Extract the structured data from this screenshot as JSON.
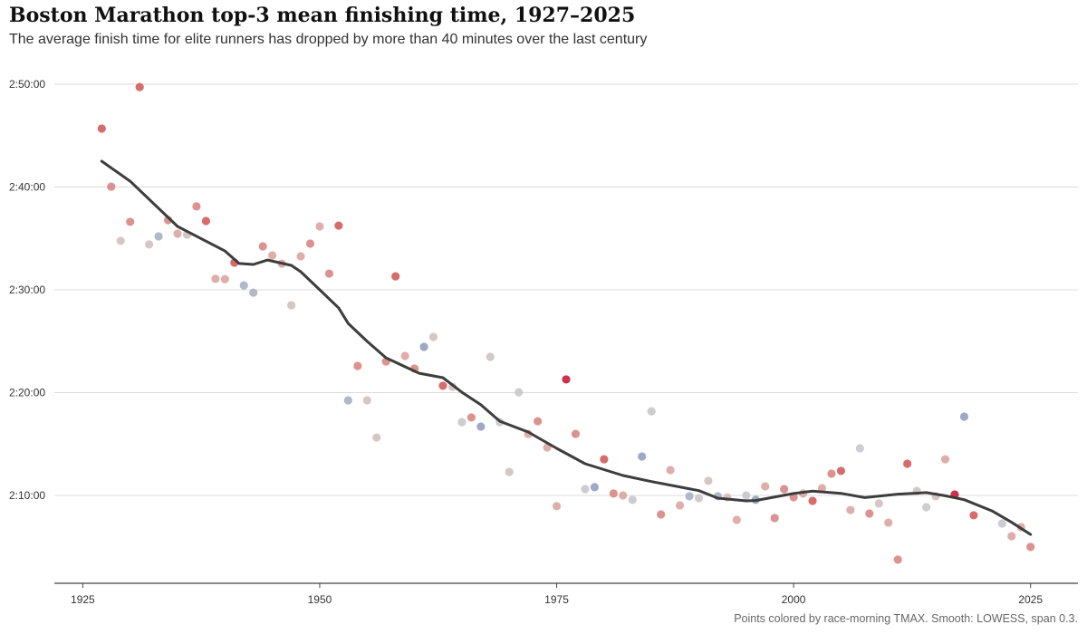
{
  "chart_data": {
    "type": "scatter",
    "title": "Boston Marathon top-3 mean finishing time, 1927–2025",
    "subtitle": "The average finish time for elite runners has dropped by more than 40 minutes over the last century",
    "caption": "Points colored by race-morning TMAX. Smooth: LOWESS, span 0.3.",
    "xlim": [
      1922,
      2030
    ],
    "ylim": [
      "2:01:27",
      "2:51:09"
    ],
    "x_ticks": [
      1925,
      1950,
      1975,
      2000,
      2025
    ],
    "y_ticks": [
      "2:10:00",
      "2:20:00",
      "2:30:00",
      "2:40:00",
      "2:50:00"
    ],
    "grid": "horizontal",
    "color_palette": [
      "#c8203a",
      "#d45f5f",
      "#d98a85",
      "#dba8a3",
      "#d3c2c2",
      "#c9c9cd",
      "#aab2c6",
      "#95a2c2"
    ],
    "smooth_color": "#3d3d3d",
    "points": [
      [
        1927,
        "2:45:41",
        1
      ],
      [
        1928,
        "2:40:02",
        2
      ],
      [
        1929,
        "2:34:46",
        4
      ],
      [
        1930,
        "2:36:37",
        2
      ],
      [
        1931,
        "2:49:44",
        1
      ],
      [
        1932,
        "2:34:25",
        4
      ],
      [
        1933,
        "2:35:12",
        6
      ],
      [
        1934,
        "2:36:47",
        2
      ],
      [
        1935,
        "2:35:28",
        3
      ],
      [
        1936,
        "2:35:22",
        4
      ],
      [
        1937,
        "2:38:07",
        2
      ],
      [
        1938,
        "2:36:42",
        1
      ],
      [
        1939,
        "2:31:04",
        3
      ],
      [
        1940,
        "2:31:02",
        3
      ],
      [
        1941,
        "2:32:39",
        1
      ],
      [
        1942,
        "2:30:26",
        6
      ],
      [
        1943,
        "2:29:44",
        6
      ],
      [
        1944,
        "2:34:14",
        2
      ],
      [
        1945,
        "2:33:21",
        3
      ],
      [
        1946,
        "2:32:33",
        3
      ],
      [
        1947,
        "2:28:30",
        4
      ],
      [
        1948,
        "2:33:16",
        3
      ],
      [
        1949,
        "2:34:30",
        2
      ],
      [
        1950,
        "2:36:10",
        3
      ],
      [
        1951,
        "2:31:35",
        2
      ],
      [
        1952,
        "2:36:15",
        1
      ],
      [
        1953,
        "2:19:15",
        6
      ],
      [
        1954,
        "2:22:36",
        2
      ],
      [
        1955,
        "2:19:15",
        4
      ],
      [
        1956,
        "2:15:38",
        4
      ],
      [
        1957,
        "2:23:02",
        2
      ],
      [
        1958,
        "2:31:19",
        1
      ],
      [
        1959,
        "2:23:34",
        3
      ],
      [
        1960,
        "2:22:20",
        2
      ],
      [
        1961,
        "2:24:27",
        7
      ],
      [
        1962,
        "2:25:25",
        4
      ],
      [
        1963,
        "2:20:40",
        1
      ],
      [
        1964,
        "2:20:34",
        4
      ],
      [
        1965,
        "2:17:08",
        5
      ],
      [
        1966,
        "2:17:35",
        2
      ],
      [
        1967,
        "2:16:42",
        7
      ],
      [
        1968,
        "2:23:29",
        4
      ],
      [
        1969,
        "2:17:08",
        5
      ],
      [
        1970,
        "2:12:17",
        4
      ],
      [
        1971,
        "2:20:02",
        5
      ],
      [
        1972,
        "2:15:59",
        3
      ],
      [
        1973,
        "2:17:13",
        2
      ],
      [
        1974,
        "2:14:40",
        3
      ],
      [
        1975,
        "2:08:57",
        3
      ],
      [
        1976,
        "2:21:17",
        0
      ],
      [
        1977,
        "2:15:59",
        2
      ],
      [
        1978,
        "2:10:37",
        5
      ],
      [
        1979,
        "2:10:48",
        7
      ],
      [
        1980,
        "2:13:31",
        1
      ],
      [
        1981,
        "2:10:11",
        2
      ],
      [
        1982,
        "2:10:00",
        3
      ],
      [
        1983,
        "2:09:34",
        5
      ],
      [
        1984,
        "2:13:47",
        7
      ],
      [
        1985,
        "2:18:11",
        5
      ],
      [
        1986,
        "2:08:09",
        2
      ],
      [
        1987,
        "2:12:28",
        3
      ],
      [
        1988,
        "2:09:02",
        3
      ],
      [
        1989,
        "2:09:55",
        6
      ],
      [
        1990,
        "2:09:44",
        5
      ],
      [
        1991,
        "2:11:25",
        4
      ],
      [
        1992,
        "2:09:55",
        6
      ],
      [
        1993,
        "2:09:49",
        4
      ],
      [
        1994,
        "2:07:37",
        3
      ],
      [
        1995,
        "2:10:00",
        5
      ],
      [
        1996,
        "2:09:34",
        7
      ],
      [
        1997,
        "2:10:53",
        3
      ],
      [
        1998,
        "2:07:48",
        2
      ],
      [
        1999,
        "2:10:37",
        2
      ],
      [
        2000,
        "2:09:49",
        2
      ],
      [
        2001,
        "2:10:11",
        3
      ],
      [
        2002,
        "2:09:28",
        1
      ],
      [
        2003,
        "2:10:42",
        3
      ],
      [
        2004,
        "2:12:07",
        2
      ],
      [
        2005,
        "2:12:23",
        1
      ],
      [
        2006,
        "2:08:35",
        3
      ],
      [
        2007,
        "2:14:35",
        5
      ],
      [
        2008,
        "2:08:14",
        2
      ],
      [
        2009,
        "2:09:13",
        4
      ],
      [
        2010,
        "2:07:21",
        3
      ],
      [
        2011,
        "2:03:45",
        2
      ],
      [
        2012,
        "2:13:05",
        1
      ],
      [
        2013,
        "2:10:26",
        4
      ],
      [
        2014,
        "2:08:51",
        5
      ],
      [
        2015,
        "2:09:55",
        4
      ],
      [
        2016,
        "2:13:31",
        3
      ],
      [
        2017,
        "2:10:05",
        0
      ],
      [
        2018,
        "2:17:40",
        7
      ],
      [
        2019,
        "2:08:04",
        1
      ],
      [
        2022,
        "2:07:16",
        5
      ],
      [
        2023,
        "2:06:02",
        3
      ],
      [
        2024,
        "2:06:55",
        3
      ],
      [
        2025,
        "2:04:59",
        2
      ]
    ],
    "smooth": [
      [
        1927,
        "2:42:31"
      ],
      [
        1930,
        "2:40:34"
      ],
      [
        1935,
        "2:36:10"
      ],
      [
        1940,
        "2:33:47"
      ],
      [
        1941.5,
        "2:32:34"
      ],
      [
        1943,
        "2:32:28"
      ],
      [
        1944.5,
        "2:32:54"
      ],
      [
        1947,
        "2:32:23"
      ],
      [
        1948,
        "2:31:46"
      ],
      [
        1950,
        "2:30:00"
      ],
      [
        1952,
        "2:28:14"
      ],
      [
        1953,
        "2:26:44"
      ],
      [
        1955,
        "2:24:59"
      ],
      [
        1957,
        "2:23:23"
      ],
      [
        1959,
        "2:22:31"
      ],
      [
        1960.5,
        "2:21:53"
      ],
      [
        1963,
        "2:21:27"
      ],
      [
        1965,
        "2:20:02"
      ],
      [
        1967,
        "2:18:49"
      ],
      [
        1969,
        "2:17:13"
      ],
      [
        1972,
        "2:16:10"
      ],
      [
        1975,
        "2:14:35"
      ],
      [
        1978,
        "2:13:05"
      ],
      [
        1982,
        "2:11:56"
      ],
      [
        1985,
        "2:11:21"
      ],
      [
        1990,
        "2:10:28"
      ],
      [
        1992,
        "2:09:44"
      ],
      [
        1995,
        "2:09:28"
      ],
      [
        1996,
        "2:09:30"
      ],
      [
        2000,
        "2:10:11"
      ],
      [
        2002,
        "2:10:25"
      ],
      [
        2005,
        "2:10:12"
      ],
      [
        2007.5,
        "2:09:47"
      ],
      [
        2011,
        "2:10:07"
      ],
      [
        2014,
        "2:10:16"
      ],
      [
        2016,
        "2:09:58"
      ],
      [
        2018,
        "2:09:35"
      ],
      [
        2021,
        "2:08:28"
      ],
      [
        2023,
        "2:07:23"
      ],
      [
        2025,
        "2:06:12"
      ]
    ]
  }
}
